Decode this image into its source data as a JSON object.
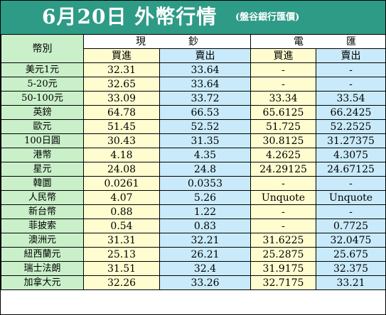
{
  "header": {
    "title": "6月20日 外幣行情",
    "subtitle": "(盤谷銀行匯價)"
  },
  "columns": {
    "currency": "幣別",
    "cash": "現鈔",
    "wire": "電匯",
    "buy": "買進",
    "sell": "賣出"
  },
  "rows": [
    {
      "name": "美元1元",
      "cash_buy": "32.31",
      "cash_sell": "33.64",
      "wire_buy": "-",
      "wire_sell": "-"
    },
    {
      "name": "5-20元",
      "cash_buy": "32.65",
      "cash_sell": "33.64",
      "wire_buy": "-",
      "wire_sell": "-"
    },
    {
      "name": "50-100元",
      "cash_buy": "33.09",
      "cash_sell": "33.72",
      "wire_buy": "33.34",
      "wire_sell": "33.54"
    },
    {
      "name": "英鎊",
      "cash_buy": "64.78",
      "cash_sell": "66.53",
      "wire_buy": "65.6125",
      "wire_sell": "66.2425"
    },
    {
      "name": "歐元",
      "cash_buy": "51.45",
      "cash_sell": "52.52",
      "wire_buy": "51.725",
      "wire_sell": "52.2525"
    },
    {
      "name": "100日圓",
      "cash_buy": "30.43",
      "cash_sell": "31.35",
      "wire_buy": "30.8125",
      "wire_sell": "31.27375"
    },
    {
      "name": "港幣",
      "cash_buy": "4.18",
      "cash_sell": "4.35",
      "wire_buy": "4.2625",
      "wire_sell": "4.3075"
    },
    {
      "name": "星元",
      "cash_buy": "24.08",
      "cash_sell": "24.8",
      "wire_buy": "24.29125",
      "wire_sell": "24.67125"
    },
    {
      "name": "韓圜",
      "cash_buy": "0.0261",
      "cash_sell": "0.0353",
      "wire_buy": "-",
      "wire_sell": "-"
    },
    {
      "name": "人民幣",
      "cash_buy": "4.07",
      "cash_sell": "5.26",
      "wire_buy": "Unquote",
      "wire_sell": "Unquote"
    },
    {
      "name": "新台幣",
      "cash_buy": "0.88",
      "cash_sell": "1.22",
      "wire_buy": "-",
      "wire_sell": "-"
    },
    {
      "name": "菲披索",
      "cash_buy": "0.54",
      "cash_sell": "0.83",
      "wire_buy": "-",
      "wire_sell": "0.7725"
    },
    {
      "name": "澳洲元",
      "cash_buy": "31.31",
      "cash_sell": "32.21",
      "wire_buy": "31.6225",
      "wire_sell": "32.0475"
    },
    {
      "name": "紐西蘭元",
      "cash_buy": "25.13",
      "cash_sell": "26.21",
      "wire_buy": "25.2875",
      "wire_sell": "25.675"
    },
    {
      "name": "瑞士法朗",
      "cash_buy": "31.51",
      "cash_sell": "32.4",
      "wire_buy": "31.9175",
      "wire_sell": "32.375"
    },
    {
      "name": "加拿大元",
      "cash_buy": "32.26",
      "cash_sell": "33.26",
      "wire_buy": "32.7175",
      "wire_sell": "33.21"
    }
  ]
}
